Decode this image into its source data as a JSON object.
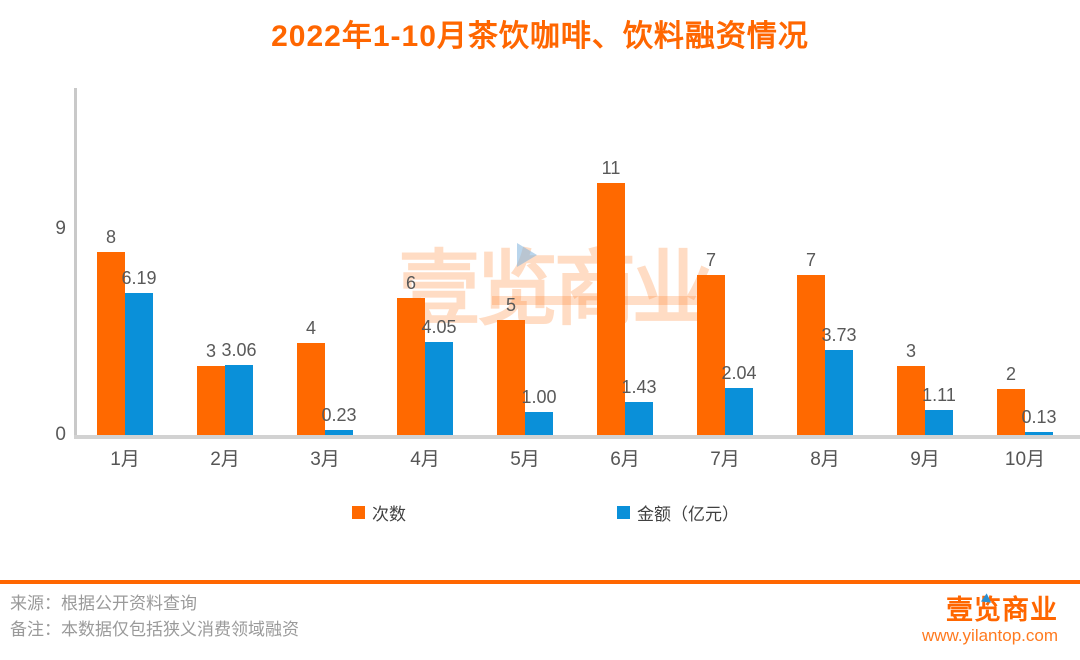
{
  "title": "2022年1-10月茶饮咖啡、饮料融资情况",
  "chart_data": {
    "type": "bar",
    "categories": [
      "1月",
      "2月",
      "3月",
      "4月",
      "5月",
      "6月",
      "7月",
      "8月",
      "9月",
      "10月"
    ],
    "series": [
      {
        "name": "次数",
        "color": "#ff6900",
        "values": [
          8,
          3,
          4,
          6,
          5,
          11,
          7,
          7,
          3,
          2
        ],
        "labels": [
          "8",
          "3",
          "4",
          "6",
          "5",
          "11",
          "7",
          "7",
          "3",
          "2"
        ]
      },
      {
        "name": "金额（亿元）",
        "color": "#0a90d9",
        "values": [
          6.19,
          3.06,
          0.23,
          4.05,
          1.0,
          1.43,
          2.04,
          3.73,
          1.11,
          0.13
        ],
        "labels": [
          "6.19",
          "3.06",
          "0.23",
          "4.05",
          "1.00",
          "1.43",
          "2.04",
          "3.73",
          "1.11",
          "0.13"
        ]
      }
    ],
    "xlabel": "",
    "ylabel": "",
    "ylim": [
      0,
      15.2
    ],
    "yticks": [
      {
        "value": 0,
        "label": "0"
      },
      {
        "value": 9,
        "label": "9"
      }
    ],
    "grid": false,
    "legend_position": "bottom"
  },
  "legend": {
    "items": [
      {
        "label": "次数",
        "color": "#ff6900"
      },
      {
        "label": "金额（亿元）",
        "color": "#0a90d9"
      }
    ]
  },
  "watermark": {
    "text": "壹览商业"
  },
  "footer": {
    "source_line": "来源：根据公开资料查询",
    "note_line": "备注：本数据仅包括狭义消费领域融资"
  },
  "logo": {
    "text": "壹览商业",
    "url": "www.yilantop.com"
  },
  "colors": {
    "accent": "#ff6600",
    "bar_orange": "#ff6900",
    "bar_blue": "#0a90d9",
    "axis": "#c9c9c9"
  }
}
